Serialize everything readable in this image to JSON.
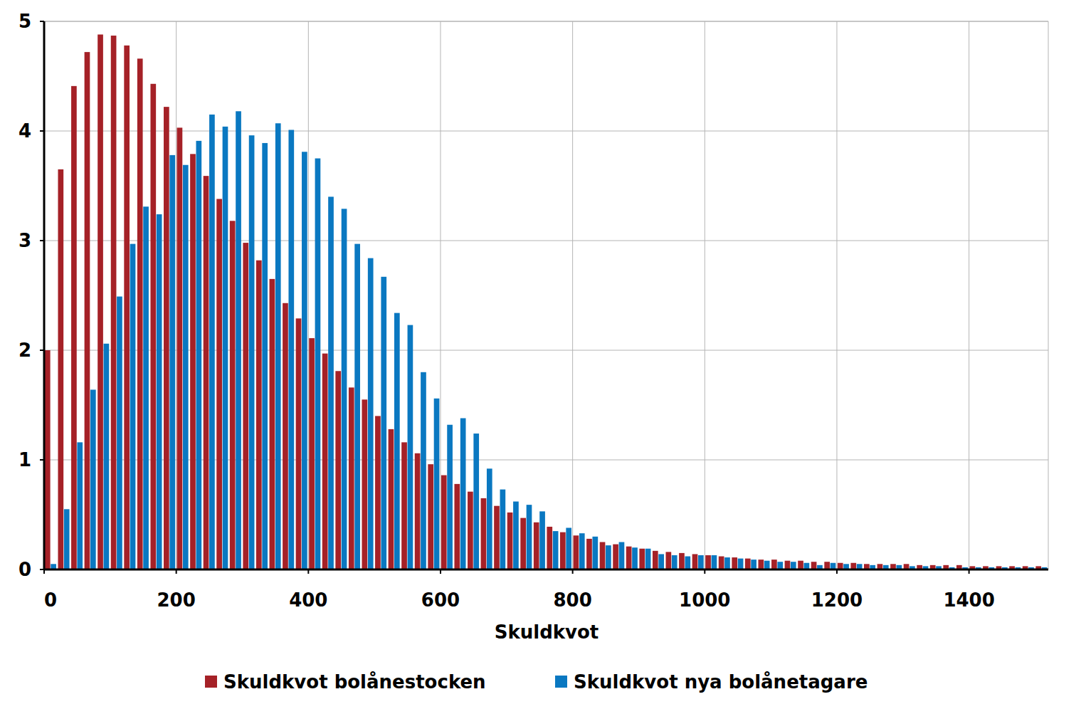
{
  "chart_data": {
    "type": "bar",
    "x_label": "Skuldkvot",
    "bins": [
      0,
      20,
      40,
      60,
      80,
      100,
      120,
      140,
      160,
      180,
      200,
      220,
      240,
      260,
      280,
      300,
      320,
      340,
      360,
      380,
      400,
      420,
      440,
      460,
      480,
      500,
      520,
      540,
      560,
      580,
      600,
      620,
      640,
      660,
      680,
      700,
      720,
      740,
      760,
      780,
      800,
      820,
      840,
      860,
      880,
      900,
      920,
      940,
      960,
      980,
      1000,
      1020,
      1040,
      1060,
      1080,
      1100,
      1120,
      1140,
      1160,
      1180,
      1200,
      1220,
      1240,
      1260,
      1280,
      1300,
      1320,
      1340,
      1360,
      1380,
      1400,
      1420,
      1440,
      1460,
      1480,
      1500,
      1520
    ],
    "series": [
      {
        "name": "Skuldkvot bolånestocken",
        "color": "#a52127",
        "values": [
          2.0,
          3.65,
          4.41,
          4.72,
          4.88,
          4.87,
          4.78,
          4.66,
          4.43,
          4.22,
          4.03,
          3.79,
          3.59,
          3.38,
          3.18,
          2.98,
          2.82,
          2.65,
          2.43,
          2.29,
          2.11,
          1.97,
          1.81,
          1.66,
          1.55,
          1.4,
          1.28,
          1.16,
          1.06,
          0.96,
          0.86,
          0.78,
          0.71,
          0.65,
          0.58,
          0.52,
          0.47,
          0.43,
          0.39,
          0.34,
          0.31,
          0.28,
          0.25,
          0.23,
          0.21,
          0.19,
          0.17,
          0.16,
          0.15,
          0.14,
          0.13,
          0.12,
          0.11,
          0.1,
          0.09,
          0.09,
          0.08,
          0.08,
          0.07,
          0.07,
          0.06,
          0.06,
          0.05,
          0.05,
          0.05,
          0.05,
          0.04,
          0.04,
          0.04,
          0.04,
          0.03,
          0.03,
          0.03,
          0.03,
          0.03,
          0.03
        ]
      },
      {
        "name": "Skuldkvot nya bolånetagare",
        "color": "#0a78c1",
        "values": [
          0.05,
          0.55,
          1.16,
          1.64,
          2.06,
          2.49,
          2.97,
          3.31,
          3.24,
          3.78,
          3.69,
          3.91,
          4.15,
          4.04,
          4.18,
          3.96,
          3.89,
          4.07,
          4.01,
          3.81,
          3.75,
          3.4,
          3.29,
          2.97,
          2.84,
          2.67,
          2.34,
          2.23,
          1.8,
          1.56,
          1.32,
          1.38,
          1.24,
          0.92,
          0.73,
          0.62,
          0.59,
          0.53,
          0.35,
          0.38,
          0.33,
          0.3,
          0.22,
          0.25,
          0.2,
          0.19,
          0.14,
          0.13,
          0.12,
          0.13,
          0.13,
          0.11,
          0.1,
          0.09,
          0.08,
          0.07,
          0.07,
          0.06,
          0.04,
          0.06,
          0.05,
          0.05,
          0.04,
          0.04,
          0.04,
          0.03,
          0.03,
          0.03,
          0.02,
          0.02,
          0.02,
          0.02,
          0.02,
          0.02,
          0.02,
          0.02
        ]
      }
    ],
    "xlim": [
      0,
      1520
    ],
    "xticks": [
      0,
      200,
      400,
      600,
      800,
      1000,
      1200,
      1400
    ],
    "ylim": [
      0,
      5
    ],
    "yticks": [
      0,
      1,
      2,
      3,
      4,
      5
    ],
    "grid": true,
    "legend": "bottom"
  }
}
